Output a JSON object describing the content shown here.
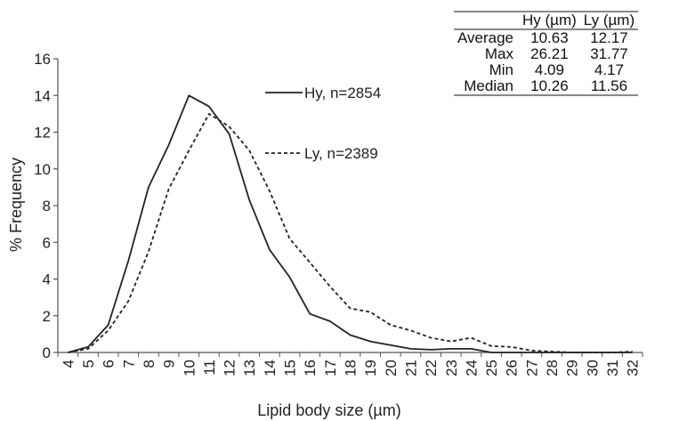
{
  "chart_data": {
    "type": "line",
    "xlabel": "Lipid body size (µm)",
    "ylabel": "% Frequency",
    "x": [
      4,
      5,
      6,
      7,
      8,
      9,
      10,
      11,
      12,
      13,
      14,
      15,
      16,
      17,
      18,
      19,
      20,
      21,
      22,
      23,
      24,
      25,
      26,
      27,
      28,
      29,
      30,
      31,
      32
    ],
    "ylim": [
      0,
      16
    ],
    "yticks": [
      0,
      2,
      4,
      6,
      8,
      10,
      12,
      14,
      16
    ],
    "series": [
      {
        "name": "Hy, n=2854",
        "style": "solid",
        "values": [
          0,
          0.3,
          1.5,
          5.0,
          9.0,
          11.3,
          14.0,
          13.4,
          11.9,
          8.3,
          5.6,
          4.1,
          2.1,
          1.7,
          0.95,
          0.6,
          0.4,
          0.2,
          0.15,
          0.2,
          0.2,
          0,
          0,
          0,
          0,
          0,
          0,
          0,
          0
        ]
      },
      {
        "name": "Ly, n=2389",
        "style": "dashed",
        "values": [
          0,
          0.2,
          1.2,
          2.8,
          5.5,
          8.9,
          11.0,
          13.0,
          12.3,
          11.0,
          8.8,
          6.2,
          4.9,
          3.6,
          2.4,
          2.2,
          1.5,
          1.2,
          0.8,
          0.6,
          0.8,
          0.35,
          0.3,
          0.1,
          0.05,
          0,
          0,
          0,
          0.05
        ]
      }
    ],
    "grid": false,
    "legend_position": "top-center"
  },
  "stats_table": {
    "columns": [
      "Hy (µm)",
      "Ly (µm)"
    ],
    "rows": [
      {
        "label": "Average",
        "hy": "10.63",
        "ly": "12.17"
      },
      {
        "label": "Max",
        "hy": "26.21",
        "ly": "31.77"
      },
      {
        "label": "Min",
        "hy": "4.09",
        "ly": "4.17"
      },
      {
        "label": "Median",
        "hy": "10.26",
        "ly": "11.56"
      }
    ]
  },
  "colors": {
    "line": "#222222",
    "axis": "#555555",
    "table_rule": "#888888"
  }
}
